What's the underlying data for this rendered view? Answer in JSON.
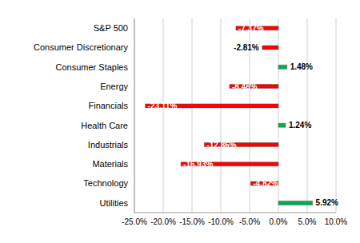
{
  "chart_data": {
    "type": "bar",
    "orientation": "horizontal",
    "categories": [
      "S&P 500",
      "Consumer Discretionary",
      "Consumer Staples",
      "Energy",
      "Financials",
      "Health Care",
      "Industrials",
      "Materials",
      "Technology",
      "Utilities"
    ],
    "values": [
      -7.37,
      -2.81,
      1.48,
      -8.48,
      -23.11,
      1.24,
      -12.86,
      -16.93,
      -4.82,
      5.92
    ],
    "value_labels": [
      "-7.37%",
      "-2.81%",
      "1.48%",
      "-8.48%",
      "-23.11%",
      "1.24%",
      "-12.86%",
      "-16.93%",
      "-4.82%",
      "5.92%"
    ],
    "colors": [
      "#ff0000",
      "#ff0000",
      "#00b050",
      "#ff0000",
      "#ff0000",
      "#00b050",
      "#ff0000",
      "#ff0000",
      "#ff0000",
      "#00b050"
    ],
    "xlim": [
      -25,
      10
    ],
    "xticks": [
      {
        "value": -25,
        "label": "-25.0%"
      },
      {
        "value": -20,
        "label": "-20.0%"
      },
      {
        "value": -15,
        "label": "-15.0%"
      },
      {
        "value": -10,
        "label": "-10.0%"
      },
      {
        "value": -5,
        "label": "-5.0%"
      },
      {
        "value": 0,
        "label": "0.0%"
      },
      {
        "value": 5,
        "label": "5.0%"
      },
      {
        "value": 10,
        "label": "10.0%"
      }
    ],
    "grid": true,
    "data_labels": true
  }
}
